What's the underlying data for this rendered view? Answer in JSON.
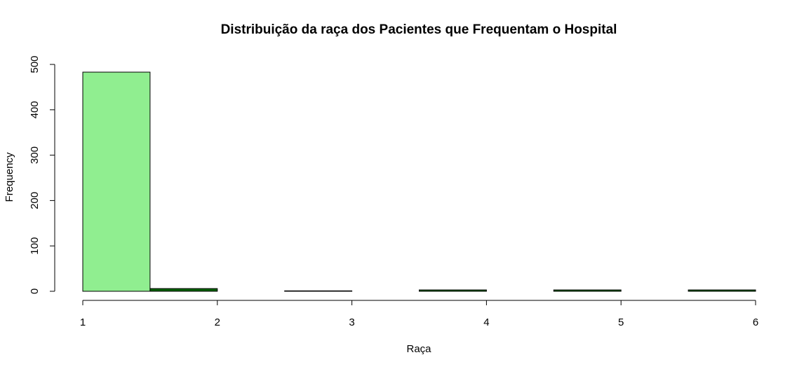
{
  "chart_data": {
    "type": "bar",
    "title": "Distribuição da raça dos Pacientes que Frequentam o Hospital",
    "xlabel": "Raça",
    "ylabel": "Frequency",
    "xlim": [
      1,
      6
    ],
    "ylim": [
      0,
      500
    ],
    "x_ticks": [
      1,
      2,
      3,
      4,
      5,
      6
    ],
    "y_ticks": [
      0,
      100,
      200,
      300,
      400,
      500
    ],
    "bins": [
      {
        "start": 1.0,
        "end": 1.5,
        "count": 483
      },
      {
        "start": 1.5,
        "end": 2.0,
        "count": 6
      },
      {
        "start": 2.0,
        "end": 2.5,
        "count": 0
      },
      {
        "start": 2.5,
        "end": 3.0,
        "count": 1
      },
      {
        "start": 3.0,
        "end": 3.5,
        "count": 0
      },
      {
        "start": 3.5,
        "end": 4.0,
        "count": 3
      },
      {
        "start": 4.0,
        "end": 4.5,
        "count": 0
      },
      {
        "start": 4.5,
        "end": 5.0,
        "count": 3
      },
      {
        "start": 5.0,
        "end": 5.5,
        "count": 0
      },
      {
        "start": 5.5,
        "end": 6.0,
        "count": 3
      }
    ],
    "colors": [
      "#90ee90",
      "#006400"
    ],
    "grid": false,
    "legend": "none"
  }
}
